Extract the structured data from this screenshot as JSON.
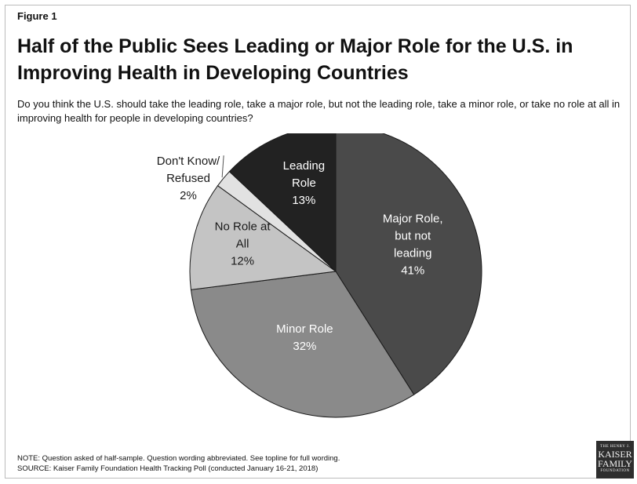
{
  "figure_label": "Figure 1",
  "title": "Half of the Public Sees Leading or Major Role for the U.S. in Improving Health in Developing Countries",
  "subtitle": "Do you think the U.S. should take the leading role, take a major role, but not the leading role, take a minor role, or take no role at all in improving health for people in developing countries?",
  "notes": {
    "note": "NOTE: Question asked of half-sample. Question wording abbreviated. See topline for full wording.",
    "source": "SOURCE: Kaiser Family Foundation Health Tracking Poll (conducted January 16-21, 2018)"
  },
  "logo": {
    "line1": "THE HENRY J.",
    "line2": "KAISER",
    "line3": "FAMILY",
    "line4": "FOUNDATION"
  },
  "chart_data": {
    "type": "pie",
    "title": "Half of the Public Sees Leading or Major Role for the U.S. in Improving Health in Developing Countries",
    "start_angle_deg": 0,
    "direction": "clockwise",
    "slices": [
      {
        "label": "Major Role, but not leading",
        "label_lines": [
          "Major Role,",
          "but not",
          "leading"
        ],
        "value": 41,
        "value_text": "41%",
        "color": "#4a4a4a",
        "text_color": "#ffffff"
      },
      {
        "label": "Minor Role",
        "label_lines": [
          "Minor Role"
        ],
        "value": 32,
        "value_text": "32%",
        "color": "#8a8a8a",
        "text_color": "#ffffff"
      },
      {
        "label": "No Role at All",
        "label_lines": [
          "No Role at",
          "All"
        ],
        "value": 12,
        "value_text": "12%",
        "color": "#c4c4c4",
        "text_color": "#1a1a1a"
      },
      {
        "label": "Don't Know/ Refused",
        "label_lines": [
          "Don't Know/",
          "Refused"
        ],
        "value": 2,
        "value_text": "2%",
        "color": "#e2e2e2",
        "text_color": "#1a1a1a",
        "outside_label": true
      },
      {
        "label": "Leading Role",
        "label_lines": [
          "Leading",
          "Role"
        ],
        "value": 13,
        "value_text": "13%",
        "color": "#222222",
        "text_color": "#ffffff"
      }
    ]
  }
}
